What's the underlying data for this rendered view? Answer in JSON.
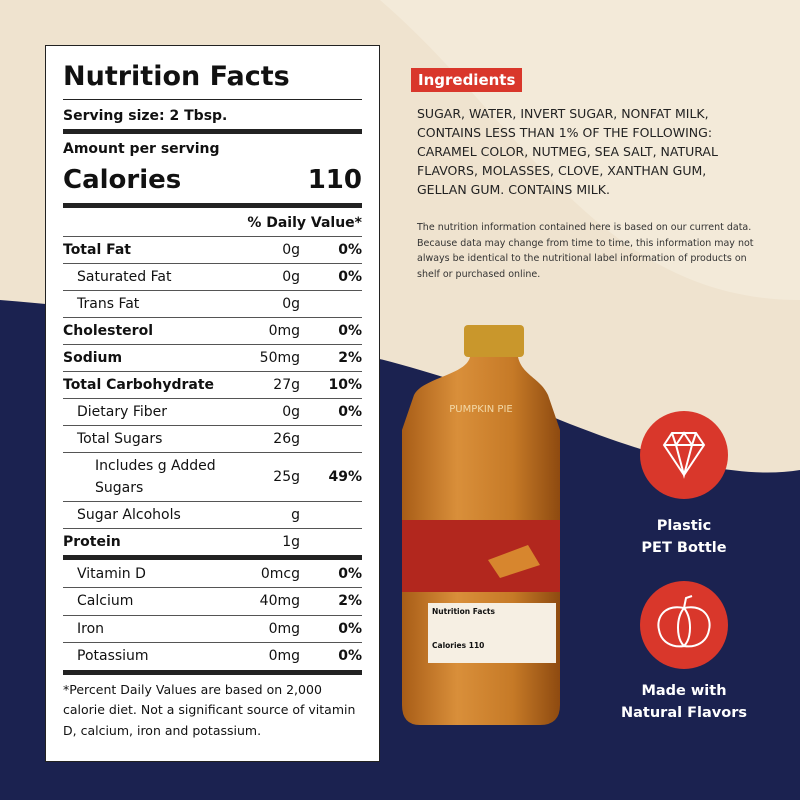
{
  "nutrition_facts": {
    "title": "Nutrition Facts",
    "serving_size": "Serving size: 2 Tbsp.",
    "amount_per_serving": "Amount per serving",
    "calories_label": "Calories",
    "calories": 110,
    "daily_value_header": "% Daily Value*",
    "rows": [
      {
        "label": "Total Fat",
        "amount": "0g",
        "dv": "0%",
        "bold": true,
        "indent": 0
      },
      {
        "label": "Saturated Fat",
        "amount": "0g",
        "dv": "0%",
        "bold": false,
        "indent": 1
      },
      {
        "label": "Trans Fat",
        "amount": "0g",
        "bold": false,
        "indent": 1
      },
      {
        "label": "Cholesterol",
        "amount": "0mg",
        "dv": "0%",
        "bold": true,
        "indent": 0
      },
      {
        "label": "Sodium",
        "amount": "50mg",
        "dv": "2%",
        "bold": true,
        "indent": 0
      },
      {
        "label": "Total Carbohydrate",
        "amount": "27g",
        "dv": "10%",
        "bold": true,
        "indent": 0
      },
      {
        "label": "Dietary Fiber",
        "amount": "0g",
        "dv": "0%",
        "bold": false,
        "indent": 1
      },
      {
        "label": "Total Sugars",
        "amount": "26g",
        "bold": false,
        "indent": 1
      },
      {
        "label": "Includes g Added Sugars",
        "amount": "25g",
        "dv": "49%",
        "bold": false,
        "indent": 2
      },
      {
        "label": "Sugar Alcohols",
        "amount": "g",
        "bold": false,
        "indent": 1
      },
      {
        "label": "Protein",
        "amount": "1g",
        "bold": true,
        "indent": 0
      }
    ],
    "vitamins": [
      {
        "label": "Vitamin D",
        "amount": "0mcg",
        "dv": "0%"
      },
      {
        "label": "Calcium",
        "amount": "40mg",
        "dv": "2%"
      },
      {
        "label": "Iron",
        "amount": "0mg",
        "dv": "0%"
      },
      {
        "label": "Potassium",
        "amount": "0mg",
        "dv": "0%"
      }
    ],
    "footnote": "*Percent Daily Values are based on 2,000 calorie diet. Not a significant source of vitamin D, calcium, iron and potassium."
  },
  "ingredients": {
    "heading": "Ingredients",
    "text": "SUGAR, WATER, INVERT SUGAR, NONFAT MILK, CONTAINS LESS THAN 1% OF THE FOLLOWING: CARAMEL COLOR, NUTMEG, SEA SALT, NATURAL FLAVORS, MOLASSES, CLOVE, XANTHAN GUM, GELLAN GUM. CONTAINS MILK.",
    "note": "The nutrition information contained here is based on our current data. Because data may change from time to time, this information may not always be identical to the nutritional label information of products on shelf or purchased online."
  },
  "bottle": {
    "name": "PUMPKIN PIE",
    "label_title": "Nutrition Facts",
    "label_calories": "Calories 110"
  },
  "features": [
    {
      "lines": [
        "Plastic",
        "PET Bottle"
      ]
    },
    {
      "lines": [
        "Made with",
        "Natural Flavors"
      ]
    }
  ]
}
